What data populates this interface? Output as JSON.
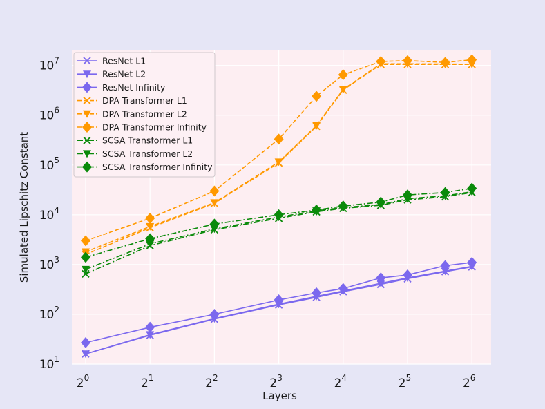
{
  "chart_data": {
    "type": "line",
    "title": "",
    "xlabel": "Layers",
    "ylabel": "Simulated Lipschitz Constant",
    "x_scale": "log2",
    "y_scale": "log10",
    "xlim": [
      1,
      64
    ],
    "ylim": [
      10,
      20000000
    ],
    "x_ticks": [
      {
        "value": 1,
        "base": "2",
        "exp": "0"
      },
      {
        "value": 2,
        "base": "2",
        "exp": "1"
      },
      {
        "value": 4,
        "base": "2",
        "exp": "2"
      },
      {
        "value": 8,
        "base": "2",
        "exp": "3"
      },
      {
        "value": 16,
        "base": "2",
        "exp": "4"
      },
      {
        "value": 32,
        "base": "2",
        "exp": "5"
      },
      {
        "value": 64,
        "base": "2",
        "exp": "6"
      }
    ],
    "y_ticks": [
      {
        "value": 10,
        "base": "10",
        "exp": "1"
      },
      {
        "value": 100,
        "base": "10",
        "exp": "2"
      },
      {
        "value": 1000,
        "base": "10",
        "exp": "3"
      },
      {
        "value": 10000,
        "base": "10",
        "exp": "4"
      },
      {
        "value": 100000,
        "base": "10",
        "exp": "5"
      },
      {
        "value": 1000000,
        "base": "10",
        "exp": "6"
      },
      {
        "value": 10000000,
        "base": "10",
        "exp": "7"
      }
    ],
    "grid": true,
    "legend_position": "top-left",
    "x": [
      1,
      2,
      4,
      8,
      12,
      16,
      24,
      32,
      48,
      64
    ],
    "series": [
      {
        "name": "ResNet L1",
        "color": "#7b68ee",
        "marker": "x",
        "dash": "solid",
        "values": [
          16,
          38,
          80,
          155,
          220,
          285,
          400,
          520,
          720,
          900
        ]
      },
      {
        "name": "ResNet L2",
        "color": "#7b68ee",
        "marker": "triangle-down",
        "dash": "solid",
        "values": [
          16,
          39,
          82,
          160,
          230,
          295,
          420,
          540,
          740,
          920
        ]
      },
      {
        "name": "ResNet Infinity",
        "color": "#7b68ee",
        "marker": "diamond",
        "dash": "solid",
        "values": [
          27,
          55,
          100,
          195,
          270,
          330,
          540,
          620,
          950,
          1100
        ]
      },
      {
        "name": "DPA Transformer L1",
        "color": "#ff9900",
        "marker": "x",
        "dash": "dashed",
        "values": [
          1600,
          5500,
          17000,
          110000,
          600000,
          3200000,
          10500000,
          10500000,
          10500000,
          10500000
        ]
      },
      {
        "name": "DPA Transformer L2",
        "color": "#ff9900",
        "marker": "triangle-down",
        "dash": "dashed",
        "values": [
          1800,
          5800,
          17500,
          115000,
          620000,
          3300000,
          10800000,
          10800000,
          10700000,
          10600000
        ]
      },
      {
        "name": "DPA Transformer  Infinity",
        "color": "#ff9900",
        "marker": "diamond",
        "dash": "dashed",
        "values": [
          3000,
          8500,
          30000,
          330000,
          2400000,
          6500000,
          12000000,
          12500000,
          11500000,
          13000000
        ]
      },
      {
        "name": "SCSA Transformer L1",
        "color": "#0a8a0a",
        "marker": "x",
        "dash": "dashdot",
        "values": [
          650,
          2400,
          5000,
          8500,
          11500,
          13500,
          15500,
          20000,
          23000,
          28000
        ]
      },
      {
        "name": "SCSA Transformer L2",
        "color": "#0a8a0a",
        "marker": "triangle-down",
        "dash": "dashdot",
        "values": [
          800,
          2600,
          5200,
          9000,
          12000,
          14000,
          16000,
          21000,
          24000,
          29000
        ]
      },
      {
        "name": "SCSA Transformer Infinity",
        "color": "#0a8a0a",
        "marker": "diamond",
        "dash": "dashdot",
        "values": [
          1400,
          3300,
          6500,
          10000,
          12500,
          15000,
          18000,
          25000,
          28000,
          34000
        ]
      }
    ]
  }
}
